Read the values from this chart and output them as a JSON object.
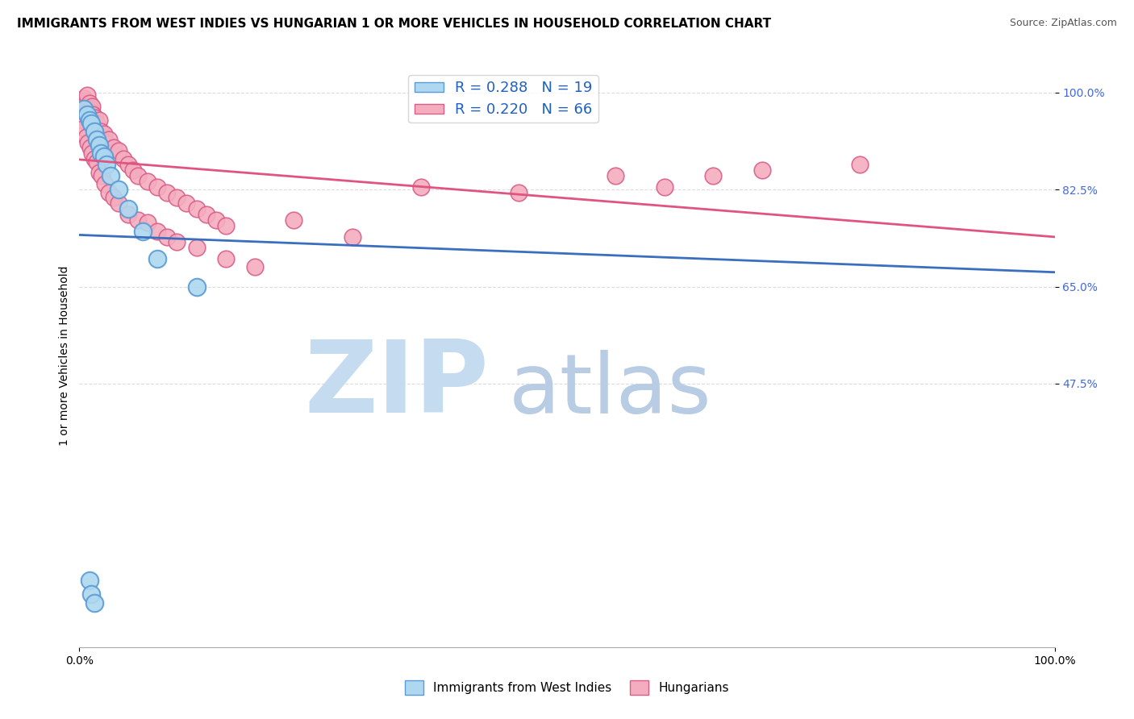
{
  "title": "IMMIGRANTS FROM WEST INDIES VS HUNGARIAN 1 OR MORE VEHICLES IN HOUSEHOLD CORRELATION CHART",
  "source": "Source: ZipAtlas.com",
  "ylabel": "1 or more Vehicles in Household",
  "xlim": [
    0.0,
    100.0
  ],
  "ylim": [
    0.0,
    105.0
  ],
  "ytick_vals": [
    47.5,
    65.0,
    82.5,
    100.0
  ],
  "ytick_labels": [
    "47.5%",
    "65.0%",
    "82.5%",
    "100.0%"
  ],
  "xtick_vals": [
    0.0,
    100.0
  ],
  "xtick_labels": [
    "0.0%",
    "100.0%"
  ],
  "blue_label": "Immigrants from West Indies",
  "pink_label": "Hungarians",
  "blue_R": 0.288,
  "blue_N": 19,
  "pink_R": 0.22,
  "pink_N": 66,
  "blue_color": "#ADD8F0",
  "blue_edge_color": "#5B9BD5",
  "pink_color": "#F4ADBE",
  "pink_edge_color": "#D95F8A",
  "blue_line_color": "#3A6FBF",
  "pink_line_color": "#E05580",
  "watermark_zip": "ZIP",
  "watermark_atlas": "atlas",
  "watermark_color_zip": "#C5DCF0",
  "watermark_color_atlas": "#B8CCE0",
  "background_color": "#FFFFFF",
  "grid_color": "#DCDCDC",
  "title_fontsize": 11,
  "source_fontsize": 9,
  "axis_label_fontsize": 10,
  "tick_fontsize": 10,
  "legend_fontsize": 13,
  "blue_x": [
    0.5,
    0.8,
    1.0,
    1.2,
    1.5,
    1.8,
    2.0,
    2.2,
    2.5,
    2.8,
    3.2,
    4.0,
    5.0,
    6.5,
    8.0,
    12.0,
    1.0,
    1.2,
    1.5
  ],
  "blue_y": [
    97.0,
    96.0,
    95.0,
    94.5,
    93.0,
    91.5,
    90.5,
    89.0,
    88.5,
    87.0,
    85.0,
    82.5,
    79.0,
    75.0,
    70.0,
    65.0,
    12.0,
    9.5,
    8.0
  ],
  "pink_x": [
    0.3,
    0.4,
    0.5,
    0.6,
    0.7,
    0.8,
    0.9,
    1.0,
    1.1,
    1.2,
    1.3,
    1.4,
    1.6,
    1.8,
    2.0,
    2.2,
    2.5,
    2.8,
    3.0,
    3.5,
    4.0,
    4.5,
    5.0,
    5.5,
    6.0,
    7.0,
    8.0,
    9.0,
    10.0,
    11.0,
    12.0,
    13.0,
    14.0,
    15.0,
    0.3,
    0.5,
    0.7,
    0.9,
    1.1,
    1.3,
    1.5,
    1.8,
    2.0,
    2.3,
    2.6,
    3.0,
    3.5,
    4.0,
    5.0,
    6.0,
    7.0,
    8.0,
    9.0,
    10.0,
    12.0,
    15.0,
    18.0,
    22.0,
    28.0,
    35.0,
    45.0,
    55.0,
    60.0,
    65.0,
    70.0,
    80.0
  ],
  "pink_y": [
    97.0,
    98.0,
    99.0,
    98.5,
    98.0,
    99.5,
    97.5,
    98.0,
    97.0,
    96.5,
    97.5,
    96.0,
    95.5,
    94.5,
    95.0,
    93.0,
    92.5,
    91.0,
    91.5,
    90.0,
    89.5,
    88.0,
    87.0,
    86.0,
    85.0,
    84.0,
    83.0,
    82.0,
    81.0,
    80.0,
    79.0,
    78.0,
    77.0,
    76.0,
    95.0,
    93.5,
    92.0,
    91.0,
    90.0,
    89.0,
    88.0,
    87.5,
    85.5,
    85.0,
    83.5,
    82.0,
    81.0,
    80.0,
    78.0,
    77.0,
    76.5,
    75.0,
    74.0,
    73.0,
    72.0,
    70.0,
    68.5,
    77.0,
    74.0,
    83.0,
    82.0,
    85.0,
    83.0,
    85.0,
    86.0,
    87.0
  ]
}
